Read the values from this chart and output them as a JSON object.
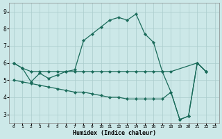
{
  "line1_x": [
    0,
    1,
    2,
    3,
    4,
    5,
    6,
    7,
    8,
    9,
    10,
    11,
    12,
    13,
    14,
    15,
    16,
    17,
    18,
    21,
    22
  ],
  "line1_y": [
    6.0,
    5.7,
    5.5,
    5.5,
    5.5,
    5.5,
    5.5,
    5.5,
    5.5,
    5.5,
    5.5,
    5.5,
    5.5,
    5.5,
    5.5,
    5.5,
    5.5,
    5.5,
    5.5,
    6.0,
    5.5
  ],
  "line2_x": [
    0,
    1,
    2,
    3,
    4,
    5,
    6,
    7,
    8,
    9,
    10,
    11,
    12,
    13,
    14,
    15,
    16,
    17,
    18,
    19,
    20,
    21,
    22
  ],
  "line2_y": [
    6.0,
    5.7,
    4.9,
    5.4,
    5.1,
    5.3,
    5.5,
    5.6,
    7.3,
    7.7,
    8.1,
    8.5,
    8.65,
    8.5,
    8.85,
    7.7,
    7.2,
    5.5,
    4.3,
    2.7,
    2.9,
    6.0,
    5.5
  ],
  "line3_x": [
    0,
    1,
    2,
    3,
    4,
    5,
    6,
    7,
    8,
    9,
    10,
    11,
    12,
    13,
    14,
    15,
    16,
    17,
    18,
    19,
    20,
    21,
    22
  ],
  "line3_y": [
    5.0,
    4.9,
    4.8,
    4.7,
    4.6,
    4.5,
    4.4,
    4.3,
    4.3,
    4.2,
    4.1,
    4.0,
    4.0,
    3.9,
    3.9,
    3.9,
    3.9,
    3.9,
    4.3,
    2.7,
    2.9,
    6.0,
    5.5
  ],
  "bg_color": "#cce8e8",
  "grid_color": "#aacccc",
  "line_color": "#1a6b5a",
  "xlabel": "Humidex (Indice chaleur)",
  "xlim": [
    -0.5,
    23.5
  ],
  "ylim": [
    2.5,
    9.5
  ],
  "yticks": [
    3,
    4,
    5,
    6,
    7,
    8,
    9
  ],
  "xticks": [
    0,
    1,
    2,
    3,
    4,
    5,
    6,
    7,
    8,
    9,
    10,
    11,
    12,
    13,
    14,
    15,
    16,
    17,
    18,
    19,
    20,
    21,
    22,
    23
  ],
  "xtick_labels": [
    "0",
    "1",
    "2",
    "3",
    "4",
    "5",
    "6",
    "7",
    "8",
    "9",
    "10",
    "11",
    "12",
    "13",
    "14",
    "15",
    "16",
    "17",
    "18",
    "19",
    "20",
    "21",
    "22",
    "23"
  ]
}
